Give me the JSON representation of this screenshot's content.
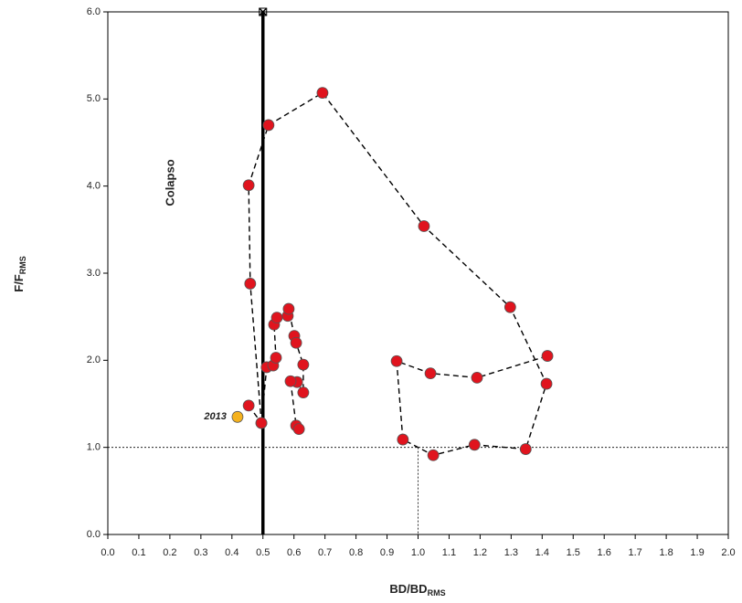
{
  "chart_data": {
    "type": "scatter",
    "x_label": {
      "main": "BD/BD",
      "sub": "RMS"
    },
    "y_label": {
      "main": "F/F",
      "sub": "RMS"
    },
    "xlim": [
      0,
      2
    ],
    "ylim": [
      0,
      6
    ],
    "xticks": [
      {
        "value": 0,
        "label": "0.0"
      },
      {
        "value": 0.1,
        "label": "0.1"
      },
      {
        "value": 0.2,
        "label": "0.2"
      },
      {
        "value": 0.3,
        "label": "0.3"
      },
      {
        "value": 0.4,
        "label": "0.4"
      },
      {
        "value": 0.5,
        "label": "0.5"
      },
      {
        "value": 0.6,
        "label": "0.6"
      },
      {
        "value": 0.7,
        "label": "0.7"
      },
      {
        "value": 0.8,
        "label": "0.8"
      },
      {
        "value": 0.9,
        "label": "0.9"
      },
      {
        "value": 1,
        "label": "1.0"
      },
      {
        "value": 1.1,
        "label": "1.1"
      },
      {
        "value": 1.2,
        "label": "1.2"
      },
      {
        "value": 1.3,
        "label": "1.3"
      },
      {
        "value": 1.4,
        "label": "1.4"
      },
      {
        "value": 1.5,
        "label": "1.5"
      },
      {
        "value": 1.6,
        "label": "1.6"
      },
      {
        "value": 1.7,
        "label": "1.7"
      },
      {
        "value": 1.8,
        "label": "1.8"
      },
      {
        "value": 1.9,
        "label": "1.9"
      },
      {
        "value": 2,
        "label": "2.0"
      }
    ],
    "yticks": [
      {
        "value": 0,
        "label": "0.0"
      },
      {
        "value": 1,
        "label": "1.0"
      },
      {
        "value": 2,
        "label": "2.0"
      },
      {
        "value": 3,
        "label": "3.0"
      },
      {
        "value": 4,
        "label": "4.0"
      },
      {
        "value": 5,
        "label": "5.0"
      },
      {
        "value": 6,
        "label": "6.0"
      }
    ],
    "collapse_line": {
      "x": 0.5,
      "label": "Colapso"
    },
    "reference": {
      "x": 1,
      "y": 1
    },
    "series": [
      {
        "color": "#e0141e",
        "x": [
          0.454,
          0.495,
          0.512,
          0.533,
          0.542,
          0.536,
          0.545,
          0.58,
          0.583,
          0.601,
          0.607,
          0.63,
          0.63,
          0.61,
          0.589,
          0.607,
          0.616,
          null,
          0.495,
          0.459,
          0.454,
          0.518,
          0.692,
          1.019,
          1.297,
          1.414,
          1.347,
          1.182,
          1.049,
          0.951,
          0.931,
          1.04,
          1.19,
          1.417
        ],
        "y": [
          1.48,
          1.28,
          1.92,
          1.94,
          2.03,
          2.41,
          2.49,
          2.51,
          2.59,
          2.28,
          2.2,
          1.95,
          1.63,
          1.75,
          1.76,
          1.25,
          1.21,
          null,
          1.28,
          2.88,
          4.01,
          4.7,
          5.07,
          3.54,
          2.61,
          1.73,
          0.98,
          1.03,
          0.91,
          1.09,
          1.99,
          1.85,
          1.8,
          2.05
        ]
      },
      {
        "name": "2013",
        "color": "#f5b21e",
        "x": [
          0.418
        ],
        "y": [
          1.35
        ]
      }
    ]
  }
}
